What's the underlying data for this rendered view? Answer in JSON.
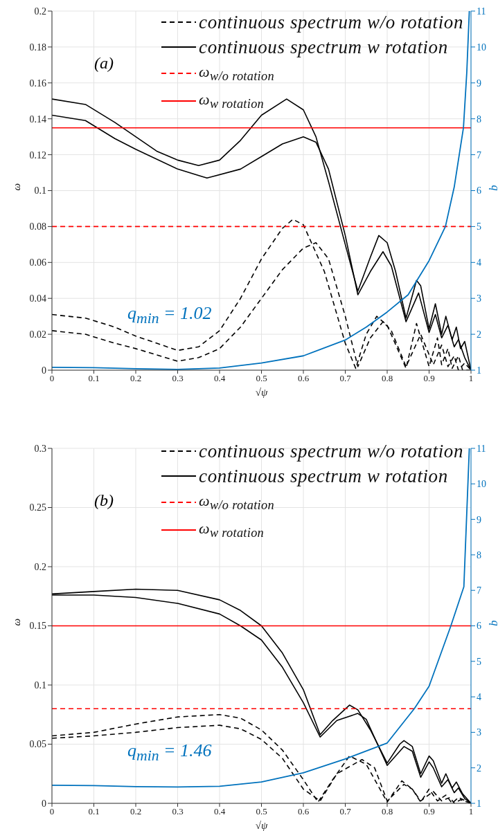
{
  "chart_data": [
    {
      "type": "line",
      "xlabel": "√ψ",
      "ylabel": "ω",
      "y2label": "q",
      "annotations": [
        "(a)",
        "q$_{min}$ = 1.02"
      ],
      "xlim": [
        0,
        1
      ],
      "xticks": [
        0,
        0.1,
        0.2,
        0.3,
        0.4,
        0.5,
        0.6,
        0.7,
        0.8,
        0.9,
        1
      ],
      "ylim": [
        0,
        0.2
      ],
      "yticks": [
        0,
        0.02,
        0.04,
        0.06,
        0.08,
        0.1,
        0.12,
        0.14,
        0.16,
        0.18,
        0.2
      ],
      "y2lim": [
        1,
        11
      ],
      "y2ticks": [
        1,
        2,
        3,
        4,
        5,
        6,
        7,
        8,
        9,
        10,
        11
      ],
      "grid": true,
      "legend": "top right",
      "series": [
        {
          "name": "continuous spectrum w/o rotation",
          "color": "#000000",
          "line_style": "dashed",
          "x": [
            0,
            0.08,
            0.15,
            0.2,
            0.25,
            0.3,
            0.35,
            0.4,
            0.45,
            0.5,
            0.55,
            0.575,
            0.6,
            0.65,
            0.7,
            0.725,
            0.75,
            0.775,
            0.8,
            0.845,
            0.87,
            0.9,
            0.92,
            0.93,
            0.945,
            0.955,
            0.97,
            0.98,
            1
          ],
          "values": [
            0.031,
            0.029,
            0.024,
            0.019,
            0.015,
            0.011,
            0.013,
            0.022,
            0.04,
            0.062,
            0.079,
            0.084,
            0.081,
            0.055,
            0.015,
            0.001,
            0.02,
            0.03,
            0.025,
            0.001,
            0.026,
            0.002,
            0.018,
            0.003,
            0.012,
            0.001,
            0.008,
            0,
            0
          ]
        },
        {
          "color": "#000000",
          "line_style": "dashed",
          "x": [
            0,
            0.08,
            0.15,
            0.2,
            0.3,
            0.35,
            0.4,
            0.45,
            0.5,
            0.55,
            0.6,
            0.63,
            0.66,
            0.7,
            0.73,
            0.76,
            0.79,
            0.81,
            0.845,
            0.88,
            0.91,
            0.93,
            0.945,
            0.96,
            0.97,
            0.985,
            1
          ],
          "values": [
            0.022,
            0.02,
            0.015,
            0.012,
            0.005,
            0.007,
            0.012,
            0.024,
            0.04,
            0.056,
            0.068,
            0.071,
            0.062,
            0.03,
            0.002,
            0.018,
            0.027,
            0.022,
            0.002,
            0.02,
            0.003,
            0.014,
            0.002,
            0.008,
            0,
            0.004,
            0
          ]
        },
        {
          "name": "continuous spectrum w rotation",
          "color": "#000000",
          "line_style": "solid",
          "x": [
            0,
            0.08,
            0.15,
            0.2,
            0.25,
            0.3,
            0.35,
            0.4,
            0.45,
            0.5,
            0.56,
            0.6,
            0.63,
            0.66,
            0.7,
            0.73,
            0.76,
            0.78,
            0.8,
            0.82,
            0.845,
            0.87,
            0.88,
            0.9,
            0.915,
            0.93,
            0.94,
            0.955,
            0.965,
            0.975,
            0.985,
            1
          ],
          "values": [
            0.151,
            0.148,
            0.138,
            0.13,
            0.122,
            0.117,
            0.114,
            0.117,
            0.128,
            0.142,
            0.151,
            0.145,
            0.13,
            0.105,
            0.07,
            0.044,
            0.063,
            0.075,
            0.071,
            0.055,
            0.029,
            0.05,
            0.047,
            0.023,
            0.037,
            0.02,
            0.03,
            0.017,
            0.024,
            0.012,
            0.016,
            0
          ]
        },
        {
          "color": "#000000",
          "line_style": "solid",
          "x": [
            0,
            0.08,
            0.15,
            0.2,
            0.3,
            0.37,
            0.45,
            0.5,
            0.55,
            0.6,
            0.63,
            0.66,
            0.7,
            0.73,
            0.76,
            0.79,
            0.81,
            0.845,
            0.875,
            0.9,
            0.915,
            0.93,
            0.945,
            0.96,
            0.97,
            0.985,
            1
          ],
          "values": [
            0.142,
            0.139,
            0.129,
            0.123,
            0.112,
            0.107,
            0.112,
            0.119,
            0.126,
            0.13,
            0.127,
            0.112,
            0.075,
            0.042,
            0.055,
            0.066,
            0.058,
            0.027,
            0.043,
            0.021,
            0.031,
            0.018,
            0.025,
            0.013,
            0.017,
            0.007,
            0
          ]
        },
        {
          "name": "ω$_{w/o rotation}$",
          "color": "#ff0000",
          "line_style": "dashed",
          "x": [
            0,
            1
          ],
          "values": [
            0.08,
            0.08
          ]
        },
        {
          "name": "ω$_{w rotation}$",
          "color": "#ff0000",
          "line_style": "solid",
          "x": [
            0,
            1
          ],
          "values": [
            0.135,
            0.135
          ]
        },
        {
          "color": "#0072bd",
          "line_style": "solid",
          "axis": "y2",
          "x": [
            0,
            0.1,
            0.2,
            0.3,
            0.4,
            0.5,
            0.6,
            0.7,
            0.75,
            0.8,
            0.85,
            0.9,
            0.939,
            0.96,
            0.982,
            0.99,
            0.996
          ],
          "values": [
            1.08,
            1.07,
            1.04,
            1.02,
            1.06,
            1.2,
            1.4,
            1.84,
            2.2,
            2.62,
            3.1,
            4.05,
            5,
            6.1,
            7.75,
            9.3,
            11
          ]
        }
      ]
    },
    {
      "type": "line",
      "xlabel": "√ψ",
      "ylabel": "ω",
      "y2label": "q",
      "annotations": [
        "(b)",
        "q$_{min}$ = 1.46"
      ],
      "xlim": [
        0,
        1
      ],
      "xticks": [
        0,
        0.1,
        0.2,
        0.3,
        0.4,
        0.5,
        0.6,
        0.7,
        0.8,
        0.9,
        1
      ],
      "ylim": [
        0,
        0.3
      ],
      "yticks": [
        0,
        0.05,
        0.1,
        0.15,
        0.2,
        0.25,
        0.3
      ],
      "y2lim": [
        1,
        11
      ],
      "y2ticks": [
        1,
        2,
        3,
        4,
        5,
        6,
        7,
        8,
        9,
        10,
        11
      ],
      "grid": true,
      "legend": "top right",
      "series": [
        {
          "name": "continuous spectrum w/o rotation",
          "color": "#000000",
          "line_style": "dashed",
          "x": [
            0,
            0.1,
            0.2,
            0.3,
            0.4,
            0.45,
            0.5,
            0.55,
            0.6,
            0.635,
            0.67,
            0.71,
            0.75,
            0.8,
            0.835,
            0.86,
            0.88,
            0.9,
            0.92,
            0.94,
            0.955,
            0.97,
            1
          ],
          "values": [
            0.057,
            0.06,
            0.067,
            0.073,
            0.075,
            0.072,
            0.062,
            0.045,
            0.02,
            0.001,
            0.02,
            0.04,
            0.033,
            0.001,
            0.019,
            0.012,
            0.001,
            0.012,
            0.002,
            0.007,
            0,
            0.005,
            0
          ]
        },
        {
          "color": "#000000",
          "line_style": "dashed",
          "x": [
            0,
            0.1,
            0.2,
            0.3,
            0.4,
            0.45,
            0.5,
            0.55,
            0.6,
            0.64,
            0.68,
            0.74,
            0.77,
            0.8,
            0.84,
            0.86,
            0.88,
            0.91,
            0.93,
            0.95,
            0.96,
            0.975,
            1
          ],
          "values": [
            0.055,
            0.057,
            0.06,
            0.064,
            0.066,
            0.063,
            0.054,
            0.038,
            0.012,
            0.002,
            0.025,
            0.037,
            0.03,
            0.002,
            0.016,
            0.012,
            0.002,
            0.01,
            0.002,
            0.005,
            0,
            0.003,
            0
          ]
        },
        {
          "name": "continuous spectrum w rotation",
          "color": "#000000",
          "line_style": "solid",
          "x": [
            0,
            0.1,
            0.2,
            0.3,
            0.4,
            0.45,
            0.5,
            0.55,
            0.6,
            0.64,
            0.67,
            0.71,
            0.73,
            0.76,
            0.8,
            0.83,
            0.84,
            0.86,
            0.88,
            0.9,
            0.91,
            0.93,
            0.94,
            0.955,
            0.965,
            0.98,
            1
          ],
          "values": [
            0.177,
            0.179,
            0.181,
            0.18,
            0.172,
            0.163,
            0.15,
            0.127,
            0.096,
            0.058,
            0.07,
            0.083,
            0.079,
            0.062,
            0.034,
            0.05,
            0.053,
            0.048,
            0.025,
            0.04,
            0.036,
            0.017,
            0.025,
            0.013,
            0.018,
            0.008,
            0
          ]
        },
        {
          "color": "#000000",
          "line_style": "solid",
          "x": [
            0,
            0.1,
            0.2,
            0.3,
            0.4,
            0.45,
            0.5,
            0.55,
            0.6,
            0.64,
            0.68,
            0.73,
            0.75,
            0.8,
            0.84,
            0.86,
            0.88,
            0.9,
            0.91,
            0.93,
            0.945,
            0.96,
            0.97,
            0.985,
            1
          ],
          "values": [
            0.176,
            0.176,
            0.174,
            0.169,
            0.16,
            0.15,
            0.138,
            0.115,
            0.085,
            0.056,
            0.07,
            0.076,
            0.071,
            0.032,
            0.048,
            0.044,
            0.022,
            0.035,
            0.03,
            0.014,
            0.02,
            0.009,
            0.013,
            0.004,
            0
          ]
        },
        {
          "name": "ω$_{w/o rotation}$",
          "color": "#ff0000",
          "line_style": "dashed",
          "x": [
            0,
            1
          ],
          "values": [
            0.08,
            0.08
          ]
        },
        {
          "name": "ω$_{w rotation}$",
          "color": "#ff0000",
          "line_style": "solid",
          "x": [
            0,
            1
          ],
          "values": [
            0.15,
            0.15
          ]
        },
        {
          "color": "#0072bd",
          "line_style": "solid",
          "axis": "y2",
          "x": [
            0,
            0.1,
            0.2,
            0.3,
            0.4,
            0.5,
            0.6,
            0.7,
            0.8,
            0.865,
            0.9,
            0.952,
            0.983,
            0.996
          ],
          "values": [
            1.51,
            1.5,
            1.47,
            1.46,
            1.48,
            1.6,
            1.86,
            2.25,
            2.7,
            3.67,
            4.3,
            6,
            7.1,
            11
          ]
        }
      ]
    }
  ]
}
